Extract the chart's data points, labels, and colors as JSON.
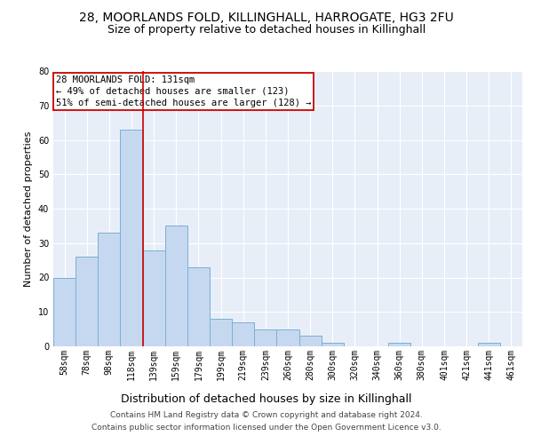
{
  "title1": "28, MOORLANDS FOLD, KILLINGHALL, HARROGATE, HG3 2FU",
  "title2": "Size of property relative to detached houses in Killinghall",
  "xlabel": "Distribution of detached houses by size in Killinghall",
  "ylabel": "Number of detached properties",
  "categories": [
    "58sqm",
    "78sqm",
    "98sqm",
    "118sqm",
    "139sqm",
    "159sqm",
    "179sqm",
    "199sqm",
    "219sqm",
    "239sqm",
    "260sqm",
    "280sqm",
    "300sqm",
    "320sqm",
    "340sqm",
    "360sqm",
    "380sqm",
    "401sqm",
    "421sqm",
    "441sqm",
    "461sqm"
  ],
  "values": [
    20,
    26,
    33,
    63,
    28,
    35,
    23,
    8,
    7,
    5,
    5,
    3,
    1,
    0,
    0,
    1,
    0,
    0,
    0,
    1,
    0
  ],
  "bar_color": "#c5d8f0",
  "bar_edge_color": "#7bafd4",
  "vline_color": "#cc0000",
  "ylim": [
    0,
    80
  ],
  "yticks": [
    0,
    10,
    20,
    30,
    40,
    50,
    60,
    70,
    80
  ],
  "annotation_title": "28 MOORLANDS FOLD: 131sqm",
  "annotation_line1": "← 49% of detached houses are smaller (123)",
  "annotation_line2": "51% of semi-detached houses are larger (128) →",
  "annotation_box_color": "#cc0000",
  "footer1": "Contains HM Land Registry data © Crown copyright and database right 2024.",
  "footer2": "Contains public sector information licensed under the Open Government Licence v3.0.",
  "background_color": "#e8eef8",
  "grid_color": "#ffffff",
  "title1_fontsize": 10,
  "title2_fontsize": 9,
  "xlabel_fontsize": 9,
  "ylabel_fontsize": 8,
  "tick_fontsize": 7,
  "annotation_fontsize": 7.5,
  "footer_fontsize": 6.5
}
